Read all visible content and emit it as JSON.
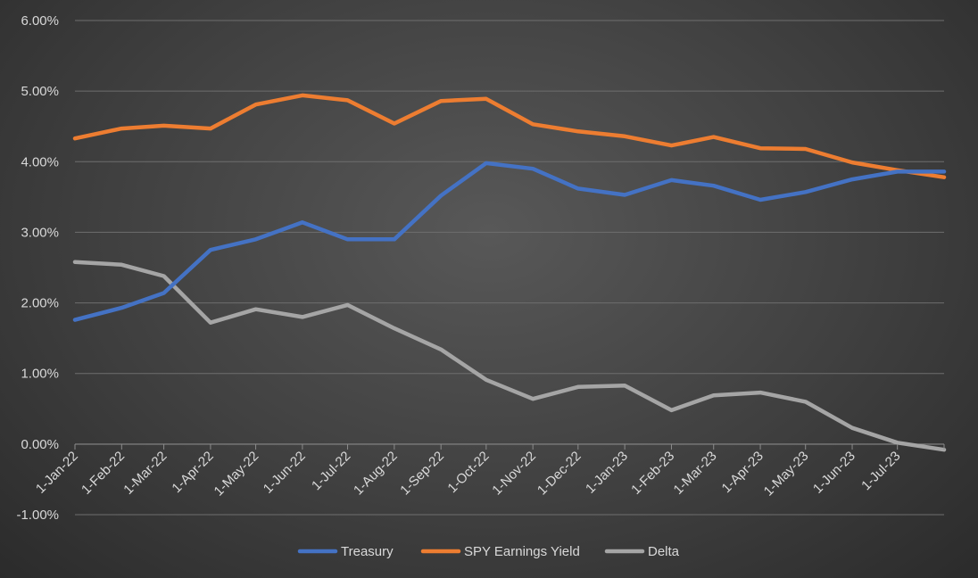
{
  "chart_data": {
    "type": "line",
    "title": "",
    "xlabel": "",
    "ylabel": "",
    "ylim": [
      -0.01,
      0.06
    ],
    "y_ticks": [
      "6.00%",
      "5.00%",
      "4.00%",
      "3.00%",
      "2.00%",
      "1.00%",
      "0.00%",
      "-1.00%"
    ],
    "y_tick_values": [
      0.06,
      0.05,
      0.04,
      0.03,
      0.02,
      0.01,
      0.0,
      -0.01
    ],
    "x_tick_labels": [
      "1-Jan-22",
      "1-Feb-22",
      "1-Mar-22",
      "1-Apr-22",
      "1-May-22",
      "1-Jun-22",
      "1-Jul-22",
      "1-Aug-22",
      "1-Sep-22",
      "1-Oct-22",
      "1-Nov-22",
      "1-Dec-22",
      "1-Jan-23",
      "1-Feb-23",
      "1-Mar-23",
      "1-Apr-23",
      "1-May-23",
      "1-Jun-23",
      "1-Jul-23"
    ],
    "x": [
      "2022-01-01",
      "2022-02-01",
      "2022-03-01",
      "2022-04-01",
      "2022-05-01",
      "2022-06-01",
      "2022-07-01",
      "2022-08-01",
      "2022-09-01",
      "2022-10-01",
      "2022-11-01",
      "2022-12-01",
      "2023-01-01",
      "2023-02-01",
      "2023-03-01",
      "2023-04-01",
      "2023-05-01",
      "2023-06-01",
      "2023-07-01",
      "2023-08-01"
    ],
    "grid": true,
    "legend_position": "bottom",
    "series": [
      {
        "name": "Treasury",
        "color": "#4472c4",
        "values": [
          0.0176,
          0.0193,
          0.0214,
          0.0275,
          0.029,
          0.0314,
          0.029,
          0.029,
          0.0352,
          0.0398,
          0.039,
          0.0362,
          0.0353,
          0.0374,
          0.0366,
          0.0346,
          0.0357,
          0.0375,
          0.0386,
          0.0386
        ]
      },
      {
        "name": "SPY Earnings Yield",
        "color": "#ed7d31",
        "values": [
          0.0433,
          0.0447,
          0.0451,
          0.0447,
          0.0481,
          0.0494,
          0.0487,
          0.0454,
          0.0486,
          0.0489,
          0.0453,
          0.0443,
          0.0436,
          0.0423,
          0.0435,
          0.0419,
          0.0418,
          0.0399,
          0.0388,
          0.0378
        ]
      },
      {
        "name": "Delta",
        "color": "#a5a5a5",
        "values": [
          0.0258,
          0.0254,
          0.0238,
          0.0172,
          0.0191,
          0.018,
          0.0197,
          0.0164,
          0.0134,
          0.0091,
          0.0064,
          0.0081,
          0.0083,
          0.0048,
          0.0069,
          0.0073,
          0.006,
          0.0023,
          0.0002,
          -0.0008
        ]
      }
    ]
  }
}
